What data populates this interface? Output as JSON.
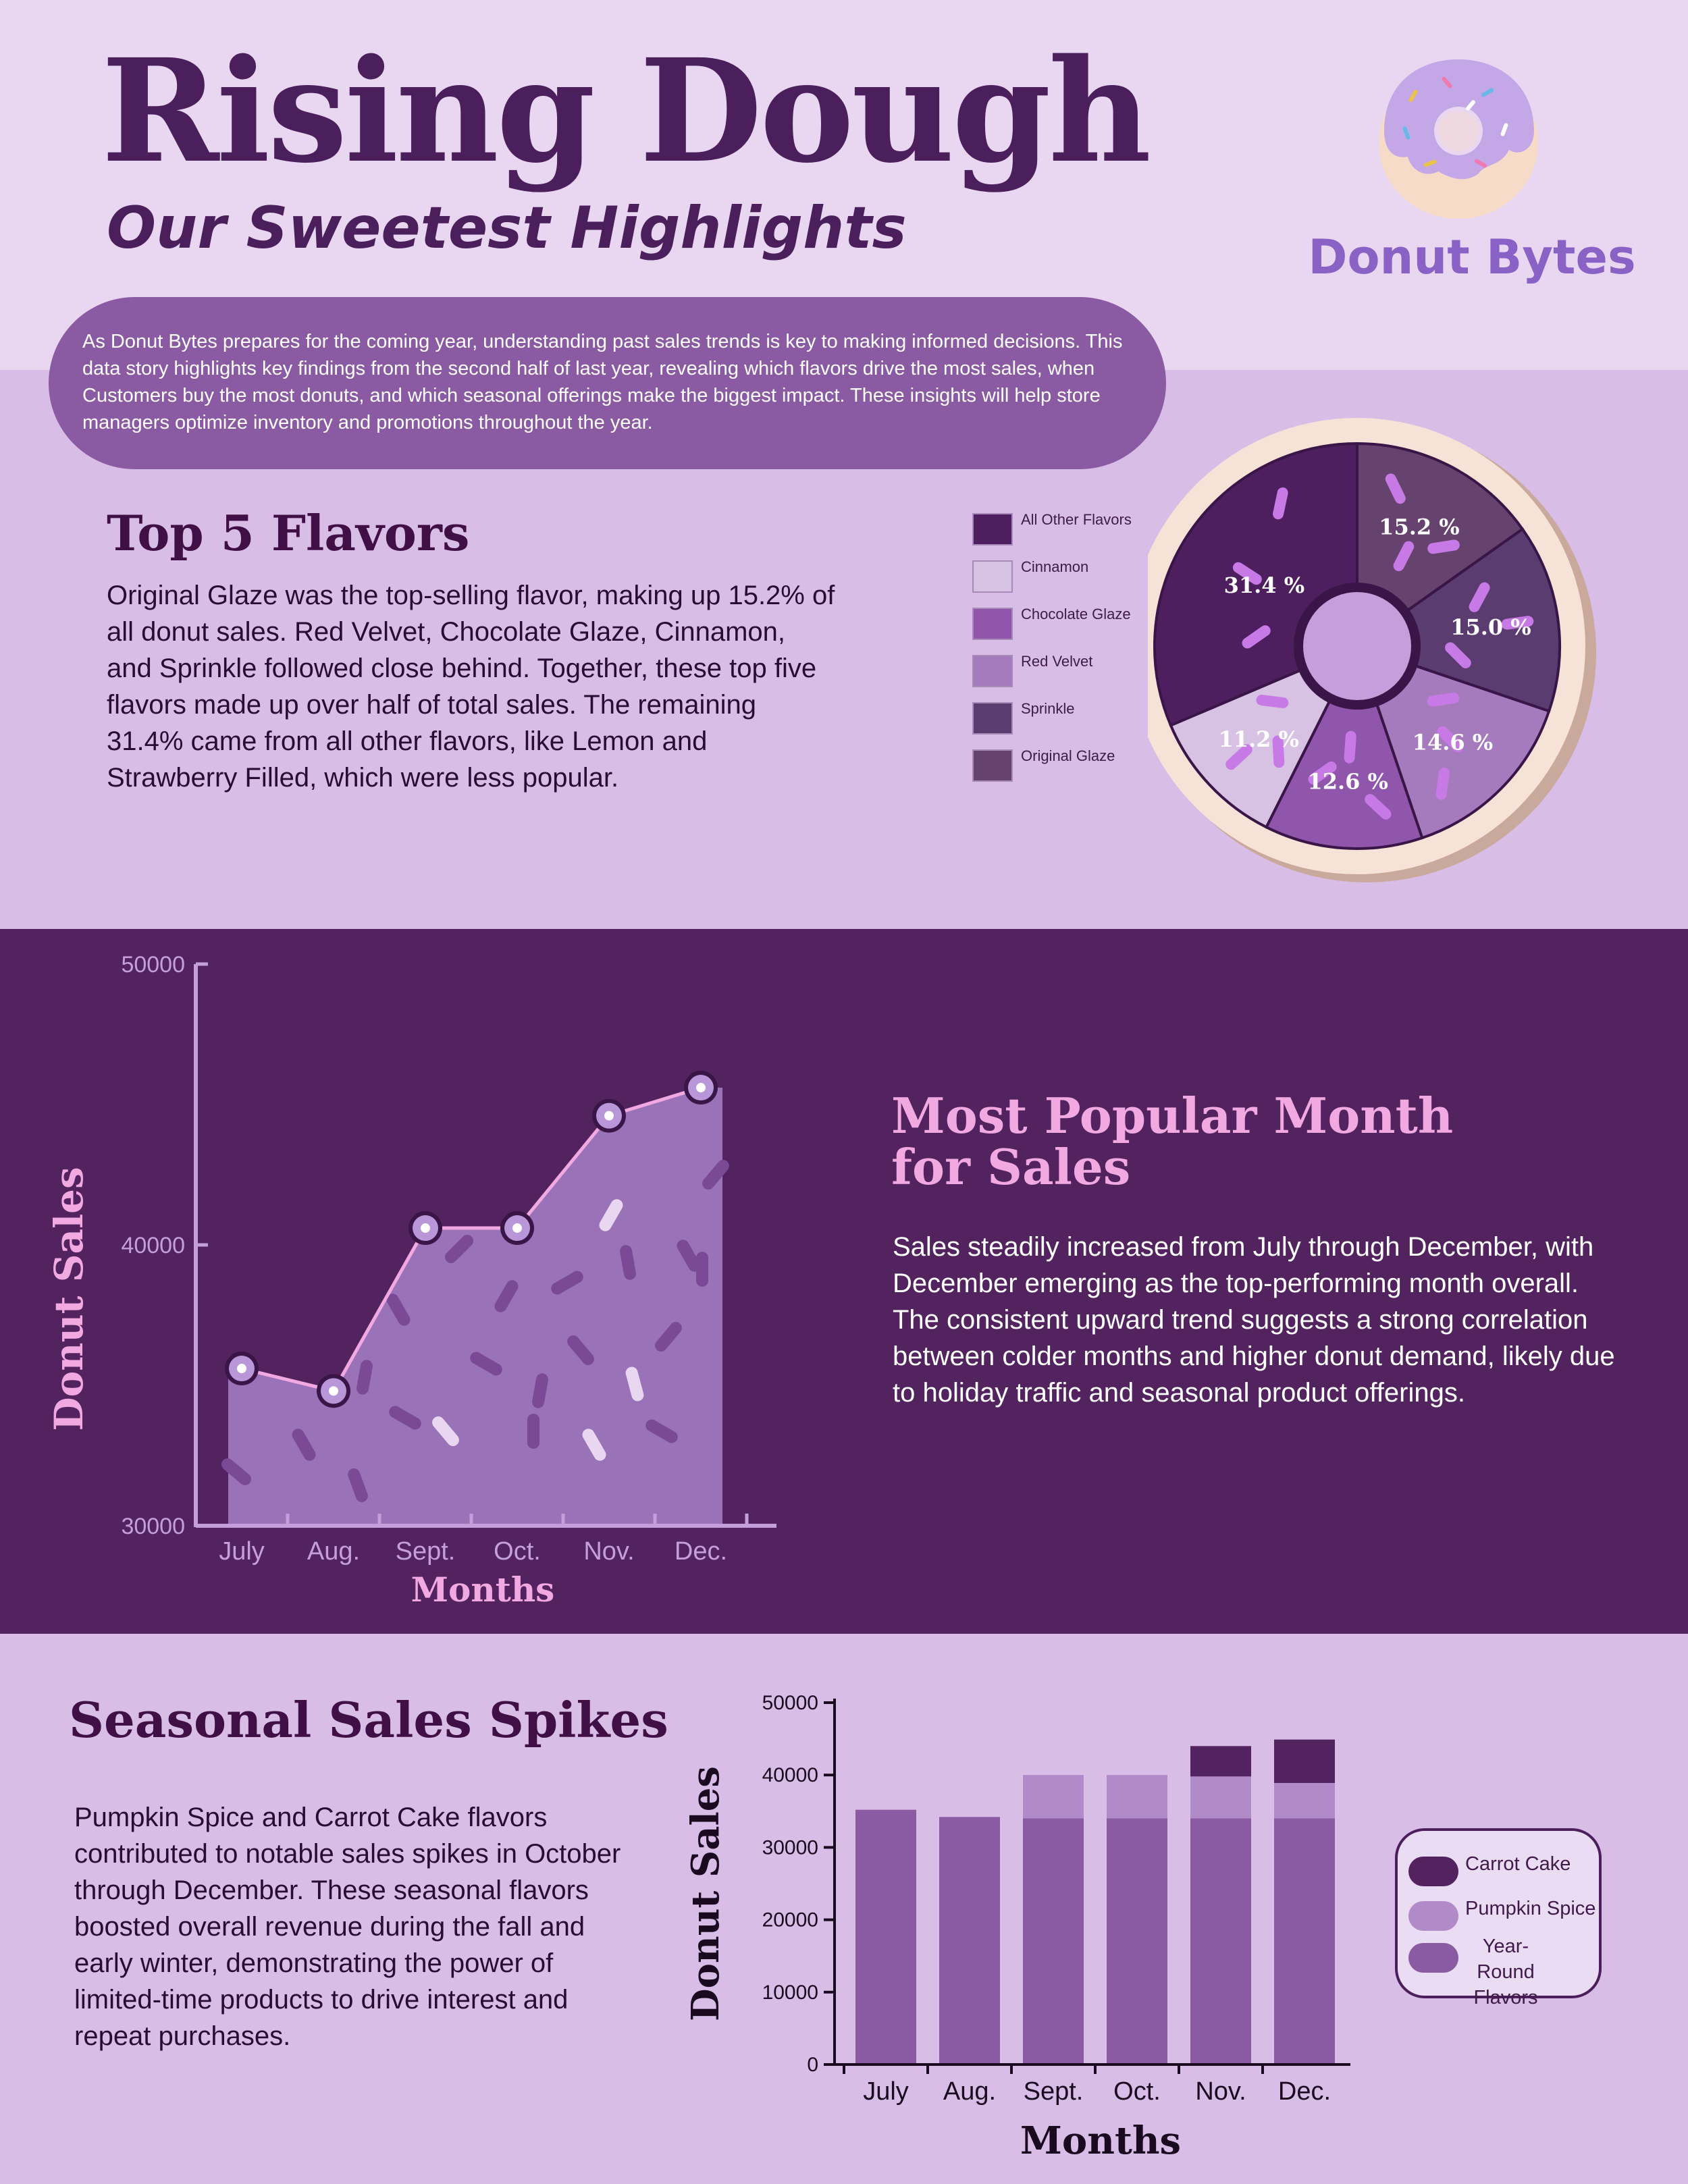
{
  "header": {
    "title": "Rising Dough",
    "subtitle": "Our Sweetest Highlights",
    "brand": "Donut Bytes",
    "intro": "As Donut Bytes prepares for the coming year, understanding past sales trends is key to making informed decisions. This data story highlights key findings from the second half of last year, revealing which flavors drive the most sales, when Customers buy the most donuts, and which seasonal offerings make the biggest impact. These insights will help store managers optimize inventory and promotions throughout the year."
  },
  "flavors_section": {
    "title": "Top 5 Flavors",
    "text": "Original Glaze was the top-selling flavor, making up 15.2% of all donut sales. Red Velvet, Chocolate Glaze, Cinnamon, and Sprinkle followed close behind. Together, these top five flavors made up over half of total sales. The remaining 31.4% came from all other flavors, like Lemon and Strawberry Filled, which were less popular."
  },
  "popular_section": {
    "title": "Most Popular Month for Sales",
    "text": "Sales steadily increased from July through December, with December emerging as the top-performing month overall. The consistent upward trend suggests a strong correlation between colder months and higher donut demand, likely due to holiday traffic and seasonal product offerings."
  },
  "seasonal_section": {
    "title": "Seasonal Sales Spikes",
    "text": "Pumpkin Spice and Carrot Cake flavors contributed to notable sales spikes in October through December. These seasonal flavors boosted overall revenue during the fall and early winter, demonstrating the power of limited-time products to drive interest and repeat purchases."
  },
  "colors": {
    "dark_purple": "#4a1f5c",
    "section_band": "#52235f",
    "pink_accent": "#f2a8e0",
    "all_other": "#4e1f5e",
    "cinnamon": "#d8c2e4",
    "chocolate_glaze": "#8f56ab",
    "red_velvet": "#a57bbd",
    "sprinkle": "#5a3c71",
    "original_glaze": "#66436e",
    "carrot_cake": "#52235f",
    "pumpkin_spice": "#b08bc8",
    "year_round": "#8a5aa2"
  },
  "icons": {
    "logo": "donut-icon",
    "line_marker": "donut-icon"
  },
  "chart_data": [
    {
      "type": "pie",
      "title": "",
      "labels": [
        "All Other Flavors",
        "Cinnamon",
        "Chocolate Glaze",
        "Red Velvet",
        "Sprinkle",
        "Original Glaze"
      ],
      "values": [
        31.4,
        11.2,
        12.6,
        14.6,
        15.0,
        15.2
      ],
      "value_labels": [
        "31.4 %",
        "11.2 %",
        "12.6 %",
        "14.6 %",
        "15.0 %",
        "15.2 %"
      ],
      "legend": [
        "All Other Flavors",
        "Cinnamon",
        "Chocolate Glaze",
        "Red Velvet",
        "Sprinkle",
        "Original Glaze"
      ],
      "legend_position": "left",
      "style": "donut"
    },
    {
      "type": "area",
      "title": "",
      "categories": [
        "July",
        "Aug.",
        "Sept.",
        "Oct.",
        "Nov.",
        "Dec."
      ],
      "values": [
        35600,
        34800,
        40600,
        40600,
        44600,
        45600
      ],
      "xlabel": "Months",
      "ylabel": "Donut Sales",
      "ylim": [
        30000,
        50000
      ],
      "yticks": [
        30000,
        40000,
        50000
      ],
      "grid": false
    },
    {
      "type": "bar",
      "stacked": true,
      "title": "",
      "categories": [
        "July",
        "Aug.",
        "Sept.",
        "Oct.",
        "Nov.",
        "Dec."
      ],
      "series": [
        {
          "name": "Year-Round Flavors",
          "values": [
            35200,
            34200,
            34000,
            34000,
            34000,
            34000
          ]
        },
        {
          "name": "Pumpkin Spice",
          "values": [
            0,
            0,
            6000,
            6000,
            5800,
            4900
          ]
        },
        {
          "name": "Carrot Cake",
          "values": [
            0,
            0,
            0,
            0,
            4200,
            6000
          ]
        }
      ],
      "xlabel": "Months",
      "ylabel": "Donut Sales",
      "ylim": [
        0,
        50000
      ],
      "yticks": [
        0,
        10000,
        20000,
        30000,
        40000,
        50000
      ],
      "legend": [
        "Carrot Cake",
        "Pumpkin Spice",
        "Year-Round Flavors"
      ],
      "legend_position": "right",
      "grid": false
    }
  ]
}
